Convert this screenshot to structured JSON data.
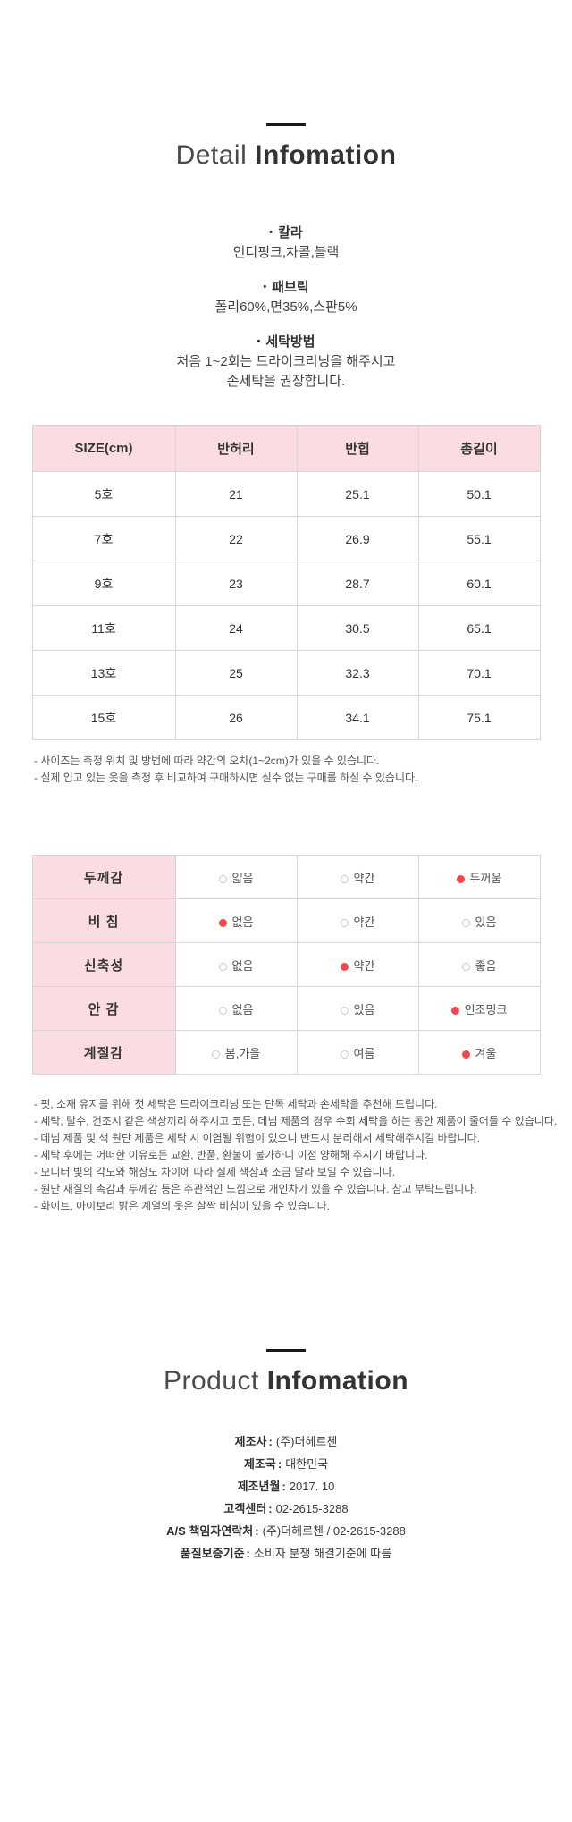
{
  "ui": {
    "bullet": "•"
  },
  "colors": {
    "pink_bg": "#fbdce1",
    "accent_red": "#f2484d",
    "border": "#d6d6d6"
  },
  "detail_section": {
    "title_light": "Detail",
    "title_bold": "Infomation",
    "bullets": [
      {
        "heading": "칼라",
        "lines": [
          "인디핑크,차콜,블랙"
        ]
      },
      {
        "heading": "패브릭",
        "lines": [
          "폴리60%,면35%,스판5%"
        ]
      },
      {
        "heading": "세탁방법",
        "lines": [
          "처음 1~2회는 드라이크리닝을 해주시고",
          "손세탁을 권장합니다."
        ]
      }
    ]
  },
  "size_table": {
    "headers": [
      "SIZE(cm)",
      "반허리",
      "반힙",
      "총길이"
    ],
    "rows": [
      {
        "cells": [
          "5호",
          "21",
          "25.1",
          "50.1"
        ]
      },
      {
        "cells": [
          "7호",
          "22",
          "26.9",
          "55.1"
        ]
      },
      {
        "cells": [
          "9호",
          "23",
          "28.7",
          "60.1"
        ]
      },
      {
        "cells": [
          "11호",
          "24",
          "30.5",
          "65.1"
        ]
      },
      {
        "cells": [
          "13호",
          "25",
          "32.3",
          "70.1"
        ]
      },
      {
        "cells": [
          "15호",
          "26",
          "34.1",
          "75.1"
        ]
      }
    ],
    "notes": [
      "- 사이즈는 측정 위치 및 방법에 따라 약간의 오차(1~2cm)가 있을 수 있습니다.",
      "- 실제 입고 있는 옷을 측정 후 비교하여 구매하시면 실수 없는 구매를 하실 수 있습니다."
    ]
  },
  "attribute_table": {
    "rows": [
      {
        "label": "두께감",
        "options": [
          {
            "text": "얇음",
            "selected": false
          },
          {
            "text": "약간",
            "selected": false
          },
          {
            "text": "두꺼움",
            "selected": true
          }
        ]
      },
      {
        "label": "비 침",
        "options": [
          {
            "text": "없음",
            "selected": true
          },
          {
            "text": "약간",
            "selected": false
          },
          {
            "text": "있음",
            "selected": false
          }
        ]
      },
      {
        "label": "신축성",
        "options": [
          {
            "text": "없음",
            "selected": false
          },
          {
            "text": "약간",
            "selected": true
          },
          {
            "text": "좋음",
            "selected": false
          }
        ]
      },
      {
        "label": "안 감",
        "options": [
          {
            "text": "없음",
            "selected": false
          },
          {
            "text": "있음",
            "selected": false
          },
          {
            "text": "인조밍크",
            "selected": true
          }
        ]
      },
      {
        "label": "계절감",
        "options": [
          {
            "text": "봄,가을",
            "selected": false
          },
          {
            "text": "여름",
            "selected": false
          },
          {
            "text": "겨울",
            "selected": true
          }
        ]
      }
    ],
    "notes": [
      "- 핏, 소재 유지를 위해 첫 세탁은 드라이크리닝 또는 단독 세탁과 손세탁을 추천해 드립니다.",
      "- 세탁, 탈수, 건조시 같은 색상끼리 해주시고 코튼, 데님 제품의 경우 수회 세탁을 하는 동안 제품이 줄어들 수 있습니다.",
      "- 데님 제품 및 색 원단 제품은 세탁 시 이염될 위험이 있으니 반드시 분리해서 세탁해주시길 바랍니다.",
      "- 세탁 후에는 어떠한 이유로든 교환, 반품, 환불이 불가하니 이점 양해해 주시기 바랍니다.",
      "- 모니터 빛의 각도와 해상도 차이에 따라 실제 색상과 조금 달라 보일 수 있습니다.",
      "- 원단 재질의 촉감과 두께감 등은 주관적인 느낌으로 개인차가 있을 수 있습니다. 참고 부탁드립니다.",
      "- 화이트, 아이보리 밝은 계열의 옷은 살짝 비침이 있을 수 있습니다."
    ]
  },
  "product_section": {
    "title_light": "Product",
    "title_bold": "Infomation",
    "separator": ":",
    "info": [
      {
        "label": "제조사",
        "value": "(주)더헤르첸"
      },
      {
        "label": "제조국",
        "value": "대한민국"
      },
      {
        "label": "제조년월",
        "value": "2017. 10"
      },
      {
        "label": "고객센터",
        "value": "02-2615-3288"
      },
      {
        "label": "A/S 책임자연락처",
        "value": "(주)더헤르첸 / 02-2615-3288"
      },
      {
        "label": "품질보증기준",
        "value": "소비자 분쟁 해결기준에 따름"
      }
    ]
  }
}
